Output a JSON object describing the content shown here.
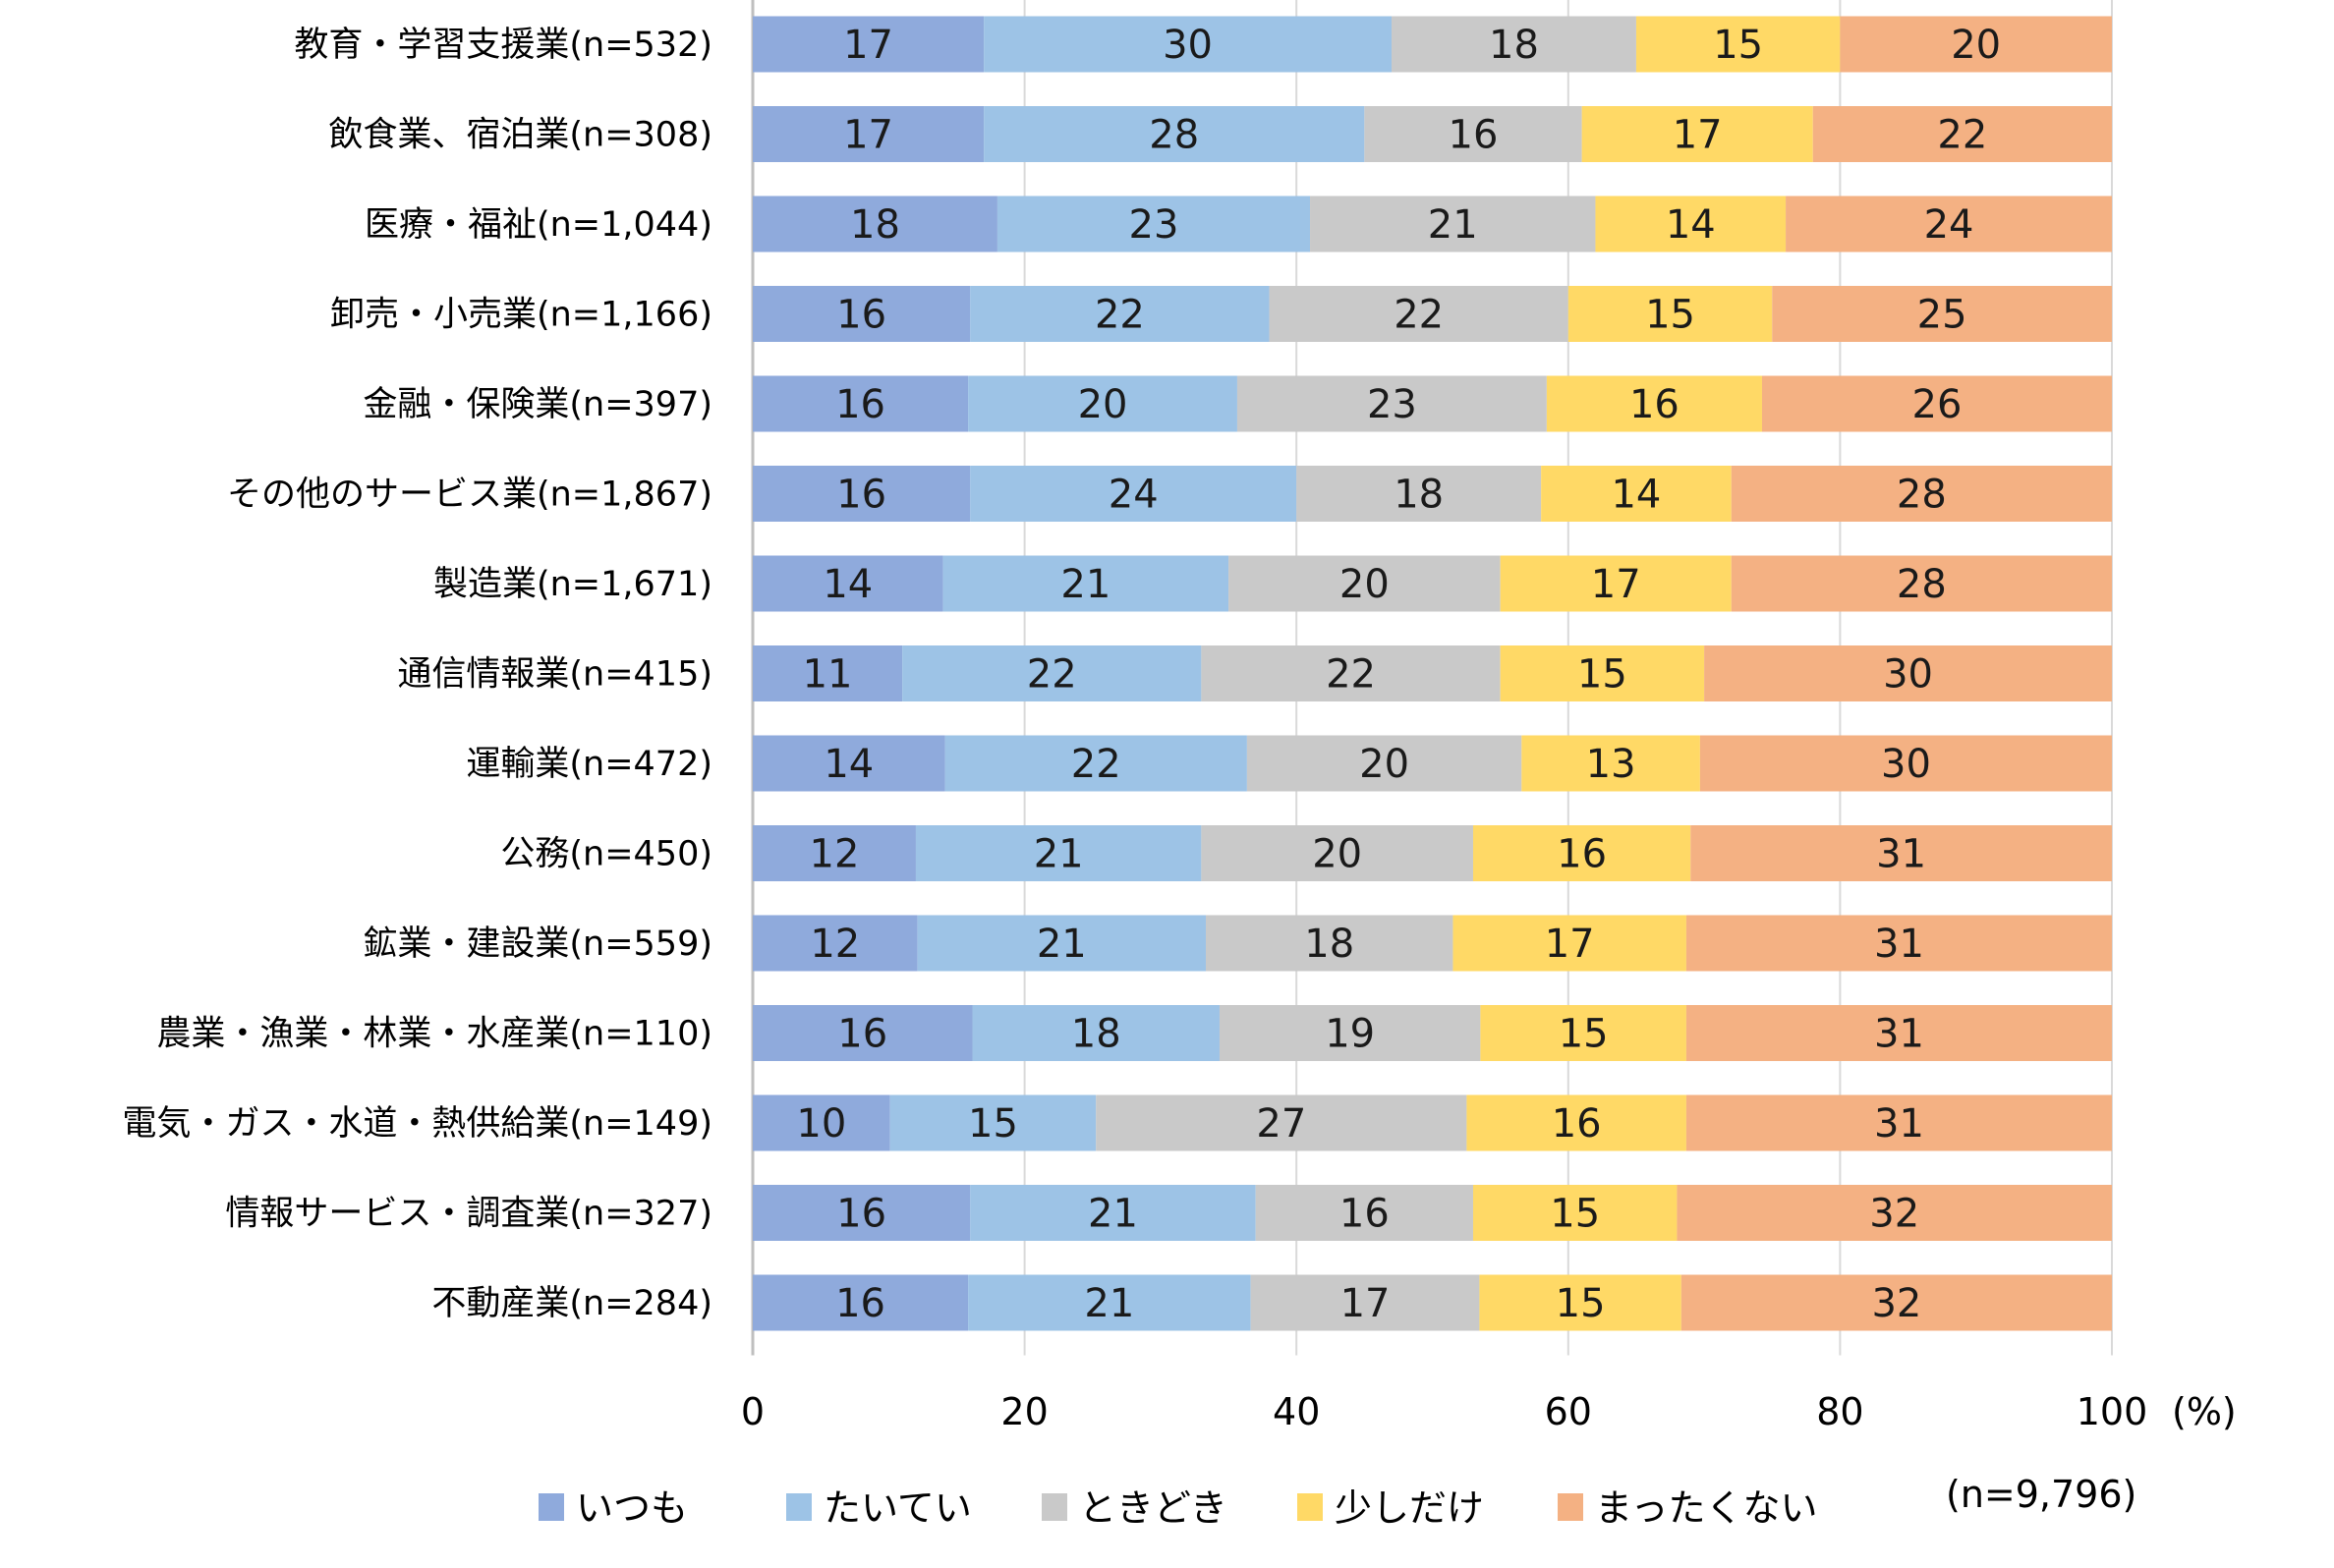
{
  "chart_data": {
    "type": "bar",
    "orientation": "horizontal",
    "stacked": true,
    "categories": [
      "教育・学習支援業(n=532)",
      "飲食業、宿泊業(n=308)",
      "医療・福祉(n=1,044)",
      "卸売・小売業(n=1,166)",
      "金融・保険業(n=397)",
      "その他のサービス業(n=1,867)",
      "製造業(n=1,671)",
      "通信情報業(n=415)",
      "運輸業(n=472)",
      "公務(n=450)",
      "鉱業・建設業(n=559)",
      "農業・漁業・林業・水産業(n=110)",
      "電気・ガス・水道・熱供給業(n=149)",
      "情報サービス・調査業(n=327)",
      "不動産業(n=284)"
    ],
    "series": [
      {
        "name": "いつも",
        "color": "#8FAADC",
        "values": [
          17,
          17,
          18,
          16,
          16,
          16,
          14,
          11,
          14,
          12,
          12,
          16,
          10,
          16,
          16
        ]
      },
      {
        "name": "たいてい",
        "color": "#9DC3E6",
        "values": [
          30,
          28,
          23,
          22,
          20,
          24,
          21,
          22,
          22,
          21,
          21,
          18,
          15,
          21,
          21
        ]
      },
      {
        "name": "ときどき",
        "color": "#C9C9C9",
        "values": [
          18,
          16,
          21,
          22,
          23,
          18,
          20,
          22,
          20,
          20,
          18,
          19,
          27,
          16,
          17
        ]
      },
      {
        "name": "少しだけ",
        "color": "#FFD966",
        "values": [
          15,
          17,
          14,
          15,
          16,
          14,
          17,
          15,
          13,
          16,
          17,
          15,
          16,
          15,
          15
        ]
      },
      {
        "name": "まったくない",
        "color": "#F4B183",
        "values": [
          20,
          22,
          24,
          25,
          26,
          28,
          28,
          30,
          30,
          31,
          31,
          31,
          31,
          32,
          32
        ]
      }
    ],
    "xlim": [
      0,
      100
    ],
    "xticks": [
      "0",
      "20",
      "40",
      "60",
      "80",
      "100"
    ],
    "xunit": "(%)",
    "grid": true,
    "legend_position": "bottom",
    "note": "(n=9,796)"
  }
}
